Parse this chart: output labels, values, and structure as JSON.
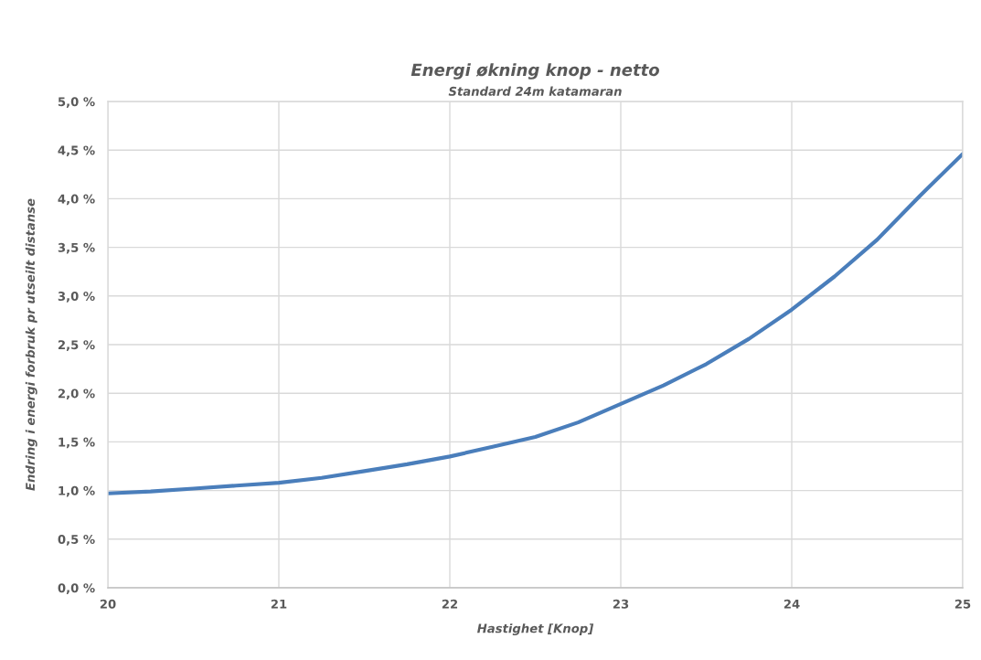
{
  "chart_data": {
    "type": "line",
    "title": "Energi økning knop - netto",
    "subtitle": "Standard 24m katamaran",
    "xlabel": "Hastighet [Knop]",
    "ylabel": "Endring i energi forbruk pr utseilt distanse",
    "x": [
      20,
      20.25,
      20.5,
      20.75,
      21,
      21.25,
      21.5,
      21.75,
      22,
      22.25,
      22.5,
      22.75,
      23,
      23.25,
      23.5,
      23.75,
      24,
      24.25,
      24.5,
      24.75,
      25
    ],
    "series": [
      {
        "color": "#4a7ebb",
        "values": [
          0.97,
          0.99,
          1.02,
          1.05,
          1.08,
          1.13,
          1.2,
          1.27,
          1.35,
          1.45,
          1.55,
          1.7,
          1.89,
          2.08,
          2.3,
          2.56,
          2.86,
          3.2,
          3.58,
          4.03,
          4.46
        ]
      }
    ],
    "xlim": [
      20,
      25
    ],
    "ylim": [
      0,
      5
    ],
    "xticks": [
      20,
      21,
      22,
      23,
      24,
      25
    ],
    "yticks": [
      {
        "value": 0,
        "label": "0,0 %"
      },
      {
        "value": 0.5,
        "label": "0,5 %"
      },
      {
        "value": 1,
        "label": "1,0 %"
      },
      {
        "value": 1.5,
        "label": "1,5 %"
      },
      {
        "value": 2,
        "label": "2,0 %"
      },
      {
        "value": 2.5,
        "label": "2,5 %"
      },
      {
        "value": 3,
        "label": "3,0 %"
      },
      {
        "value": 3.5,
        "label": "3,5 %"
      },
      {
        "value": 4,
        "label": "4,0 %"
      },
      {
        "value": 4.5,
        "label": "4,5 %"
      },
      {
        "value": 5,
        "label": "5,0 %"
      }
    ],
    "grid": true,
    "marker": "none",
    "line_style": "solid"
  }
}
